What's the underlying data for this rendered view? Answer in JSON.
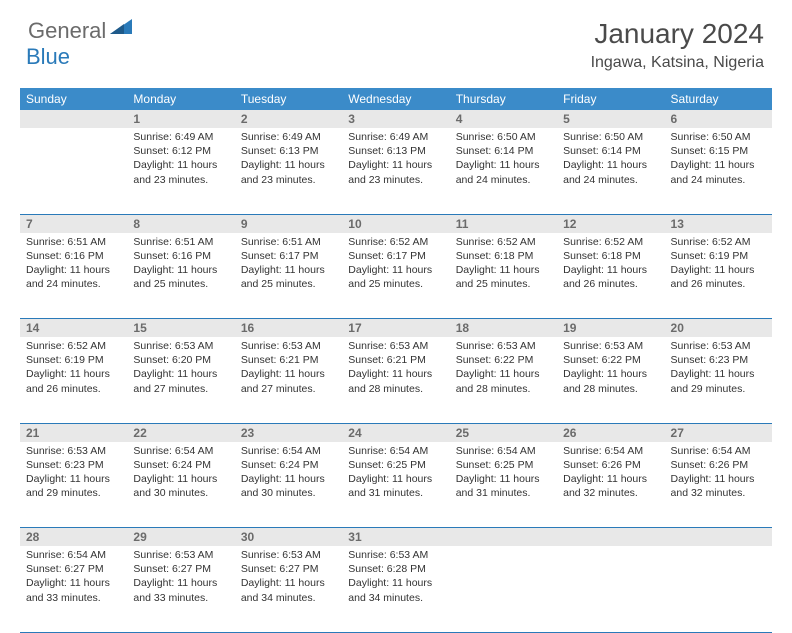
{
  "logo": {
    "word1": "General",
    "word2": "Blue"
  },
  "title": "January 2024",
  "location": "Ingawa, Katsina, Nigeria",
  "colors": {
    "header_bg": "#3b8bc9",
    "header_text": "#ffffff",
    "daynum_bg": "#e8e8e8",
    "daynum_text": "#6b6b6b",
    "rule": "#2a7ab9",
    "body_text": "#333333",
    "logo_gray": "#6b6b6b",
    "logo_blue": "#2a7ab9"
  },
  "day_headers": [
    "Sunday",
    "Monday",
    "Tuesday",
    "Wednesday",
    "Thursday",
    "Friday",
    "Saturday"
  ],
  "weeks": [
    [
      null,
      {
        "n": "1",
        "sr": "Sunrise: 6:49 AM",
        "ss": "Sunset: 6:12 PM",
        "d1": "Daylight: 11 hours",
        "d2": "and 23 minutes."
      },
      {
        "n": "2",
        "sr": "Sunrise: 6:49 AM",
        "ss": "Sunset: 6:13 PM",
        "d1": "Daylight: 11 hours",
        "d2": "and 23 minutes."
      },
      {
        "n": "3",
        "sr": "Sunrise: 6:49 AM",
        "ss": "Sunset: 6:13 PM",
        "d1": "Daylight: 11 hours",
        "d2": "and 23 minutes."
      },
      {
        "n": "4",
        "sr": "Sunrise: 6:50 AM",
        "ss": "Sunset: 6:14 PM",
        "d1": "Daylight: 11 hours",
        "d2": "and 24 minutes."
      },
      {
        "n": "5",
        "sr": "Sunrise: 6:50 AM",
        "ss": "Sunset: 6:14 PM",
        "d1": "Daylight: 11 hours",
        "d2": "and 24 minutes."
      },
      {
        "n": "6",
        "sr": "Sunrise: 6:50 AM",
        "ss": "Sunset: 6:15 PM",
        "d1": "Daylight: 11 hours",
        "d2": "and 24 minutes."
      }
    ],
    [
      {
        "n": "7",
        "sr": "Sunrise: 6:51 AM",
        "ss": "Sunset: 6:16 PM",
        "d1": "Daylight: 11 hours",
        "d2": "and 24 minutes."
      },
      {
        "n": "8",
        "sr": "Sunrise: 6:51 AM",
        "ss": "Sunset: 6:16 PM",
        "d1": "Daylight: 11 hours",
        "d2": "and 25 minutes."
      },
      {
        "n": "9",
        "sr": "Sunrise: 6:51 AM",
        "ss": "Sunset: 6:17 PM",
        "d1": "Daylight: 11 hours",
        "d2": "and 25 minutes."
      },
      {
        "n": "10",
        "sr": "Sunrise: 6:52 AM",
        "ss": "Sunset: 6:17 PM",
        "d1": "Daylight: 11 hours",
        "d2": "and 25 minutes."
      },
      {
        "n": "11",
        "sr": "Sunrise: 6:52 AM",
        "ss": "Sunset: 6:18 PM",
        "d1": "Daylight: 11 hours",
        "d2": "and 25 minutes."
      },
      {
        "n": "12",
        "sr": "Sunrise: 6:52 AM",
        "ss": "Sunset: 6:18 PM",
        "d1": "Daylight: 11 hours",
        "d2": "and 26 minutes."
      },
      {
        "n": "13",
        "sr": "Sunrise: 6:52 AM",
        "ss": "Sunset: 6:19 PM",
        "d1": "Daylight: 11 hours",
        "d2": "and 26 minutes."
      }
    ],
    [
      {
        "n": "14",
        "sr": "Sunrise: 6:52 AM",
        "ss": "Sunset: 6:19 PM",
        "d1": "Daylight: 11 hours",
        "d2": "and 26 minutes."
      },
      {
        "n": "15",
        "sr": "Sunrise: 6:53 AM",
        "ss": "Sunset: 6:20 PM",
        "d1": "Daylight: 11 hours",
        "d2": "and 27 minutes."
      },
      {
        "n": "16",
        "sr": "Sunrise: 6:53 AM",
        "ss": "Sunset: 6:21 PM",
        "d1": "Daylight: 11 hours",
        "d2": "and 27 minutes."
      },
      {
        "n": "17",
        "sr": "Sunrise: 6:53 AM",
        "ss": "Sunset: 6:21 PM",
        "d1": "Daylight: 11 hours",
        "d2": "and 28 minutes."
      },
      {
        "n": "18",
        "sr": "Sunrise: 6:53 AM",
        "ss": "Sunset: 6:22 PM",
        "d1": "Daylight: 11 hours",
        "d2": "and 28 minutes."
      },
      {
        "n": "19",
        "sr": "Sunrise: 6:53 AM",
        "ss": "Sunset: 6:22 PM",
        "d1": "Daylight: 11 hours",
        "d2": "and 28 minutes."
      },
      {
        "n": "20",
        "sr": "Sunrise: 6:53 AM",
        "ss": "Sunset: 6:23 PM",
        "d1": "Daylight: 11 hours",
        "d2": "and 29 minutes."
      }
    ],
    [
      {
        "n": "21",
        "sr": "Sunrise: 6:53 AM",
        "ss": "Sunset: 6:23 PM",
        "d1": "Daylight: 11 hours",
        "d2": "and 29 minutes."
      },
      {
        "n": "22",
        "sr": "Sunrise: 6:54 AM",
        "ss": "Sunset: 6:24 PM",
        "d1": "Daylight: 11 hours",
        "d2": "and 30 minutes."
      },
      {
        "n": "23",
        "sr": "Sunrise: 6:54 AM",
        "ss": "Sunset: 6:24 PM",
        "d1": "Daylight: 11 hours",
        "d2": "and 30 minutes."
      },
      {
        "n": "24",
        "sr": "Sunrise: 6:54 AM",
        "ss": "Sunset: 6:25 PM",
        "d1": "Daylight: 11 hours",
        "d2": "and 31 minutes."
      },
      {
        "n": "25",
        "sr": "Sunrise: 6:54 AM",
        "ss": "Sunset: 6:25 PM",
        "d1": "Daylight: 11 hours",
        "d2": "and 31 minutes."
      },
      {
        "n": "26",
        "sr": "Sunrise: 6:54 AM",
        "ss": "Sunset: 6:26 PM",
        "d1": "Daylight: 11 hours",
        "d2": "and 32 minutes."
      },
      {
        "n": "27",
        "sr": "Sunrise: 6:54 AM",
        "ss": "Sunset: 6:26 PM",
        "d1": "Daylight: 11 hours",
        "d2": "and 32 minutes."
      }
    ],
    [
      {
        "n": "28",
        "sr": "Sunrise: 6:54 AM",
        "ss": "Sunset: 6:27 PM",
        "d1": "Daylight: 11 hours",
        "d2": "and 33 minutes."
      },
      {
        "n": "29",
        "sr": "Sunrise: 6:53 AM",
        "ss": "Sunset: 6:27 PM",
        "d1": "Daylight: 11 hours",
        "d2": "and 33 minutes."
      },
      {
        "n": "30",
        "sr": "Sunrise: 6:53 AM",
        "ss": "Sunset: 6:27 PM",
        "d1": "Daylight: 11 hours",
        "d2": "and 34 minutes."
      },
      {
        "n": "31",
        "sr": "Sunrise: 6:53 AM",
        "ss": "Sunset: 6:28 PM",
        "d1": "Daylight: 11 hours",
        "d2": "and 34 minutes."
      },
      null,
      null,
      null
    ]
  ]
}
